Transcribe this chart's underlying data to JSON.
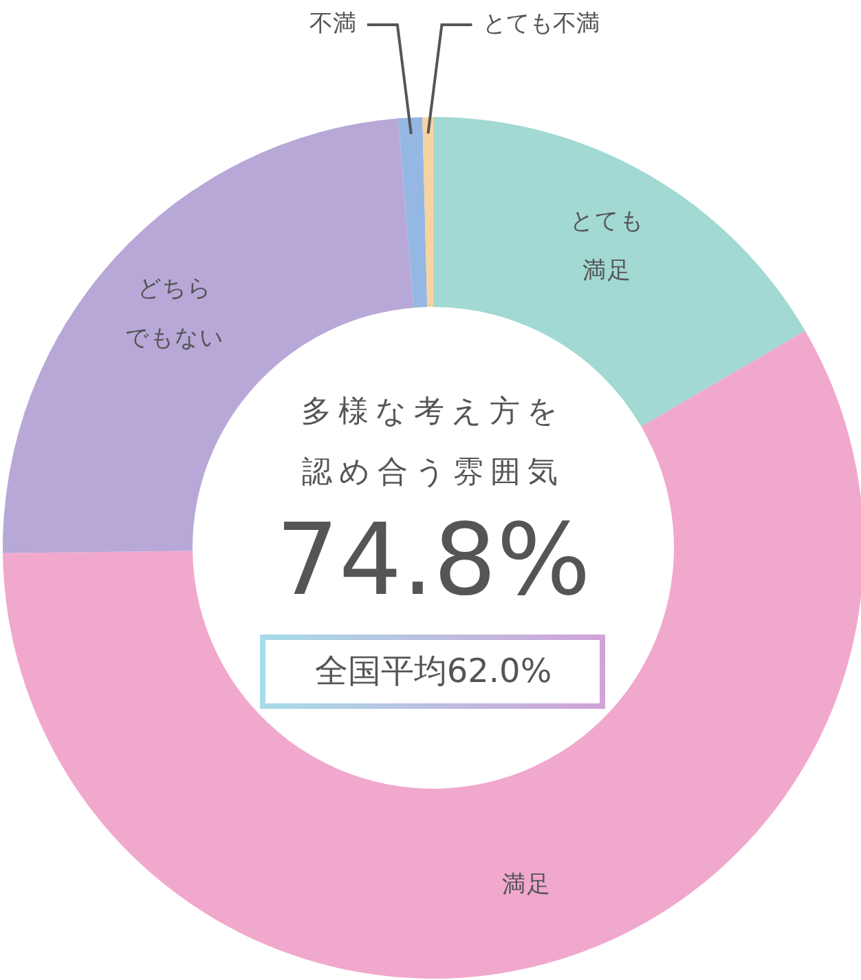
{
  "chart_data": {
    "type": "donut",
    "title": "多様な考え方を認め合う雰囲気",
    "categories": [
      "とても満足",
      "満足",
      "どちらでもない",
      "不満",
      "とても不満"
    ],
    "values": [
      16.6,
      58.2,
      23.9,
      0.9,
      0.4
    ],
    "colors": [
      "#a2d9d2",
      "#f1a8cd",
      "#b8a8d8",
      "#94b8e3",
      "#f7d3a0"
    ],
    "annotations": [
      "74.8%",
      "全国平均62.0%"
    ]
  }
}
